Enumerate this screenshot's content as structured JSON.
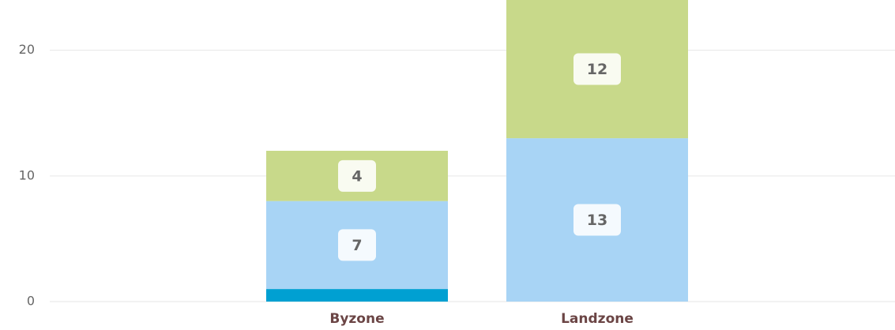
{
  "chart_data": {
    "type": "stacked_bar",
    "categories": [
      "Byzone",
      "Landzone"
    ],
    "series": [
      {
        "color": "#00a0d2",
        "values": [
          1,
          0
        ],
        "data_labels": false
      },
      {
        "color": "#a8d4f5",
        "values": [
          7,
          13
        ],
        "data_labels": true
      },
      {
        "color": "#c8d98a",
        "values": [
          4,
          12
        ],
        "data_labels": true
      }
    ],
    "ylim": [
      0,
      24
    ],
    "yticks": [
      0,
      10,
      20
    ],
    "grid": true
  }
}
